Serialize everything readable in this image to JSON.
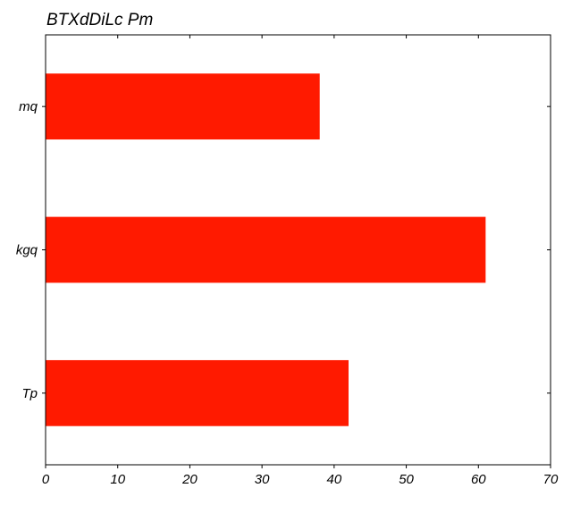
{
  "chart_data": {
    "type": "bar",
    "orientation": "horizontal",
    "title": "BTXdDiLc Pm",
    "xlabel": "",
    "ylabel": "",
    "categories": [
      "mq",
      "kgq",
      "Tp"
    ],
    "values": [
      38,
      61,
      42
    ],
    "xlim": [
      0,
      70
    ],
    "xticks": [
      0,
      10,
      20,
      30,
      40,
      50,
      60,
      70
    ],
    "grid": false,
    "legend": "none",
    "bar_color": "#ff1a00",
    "axis_color": "#000000"
  }
}
